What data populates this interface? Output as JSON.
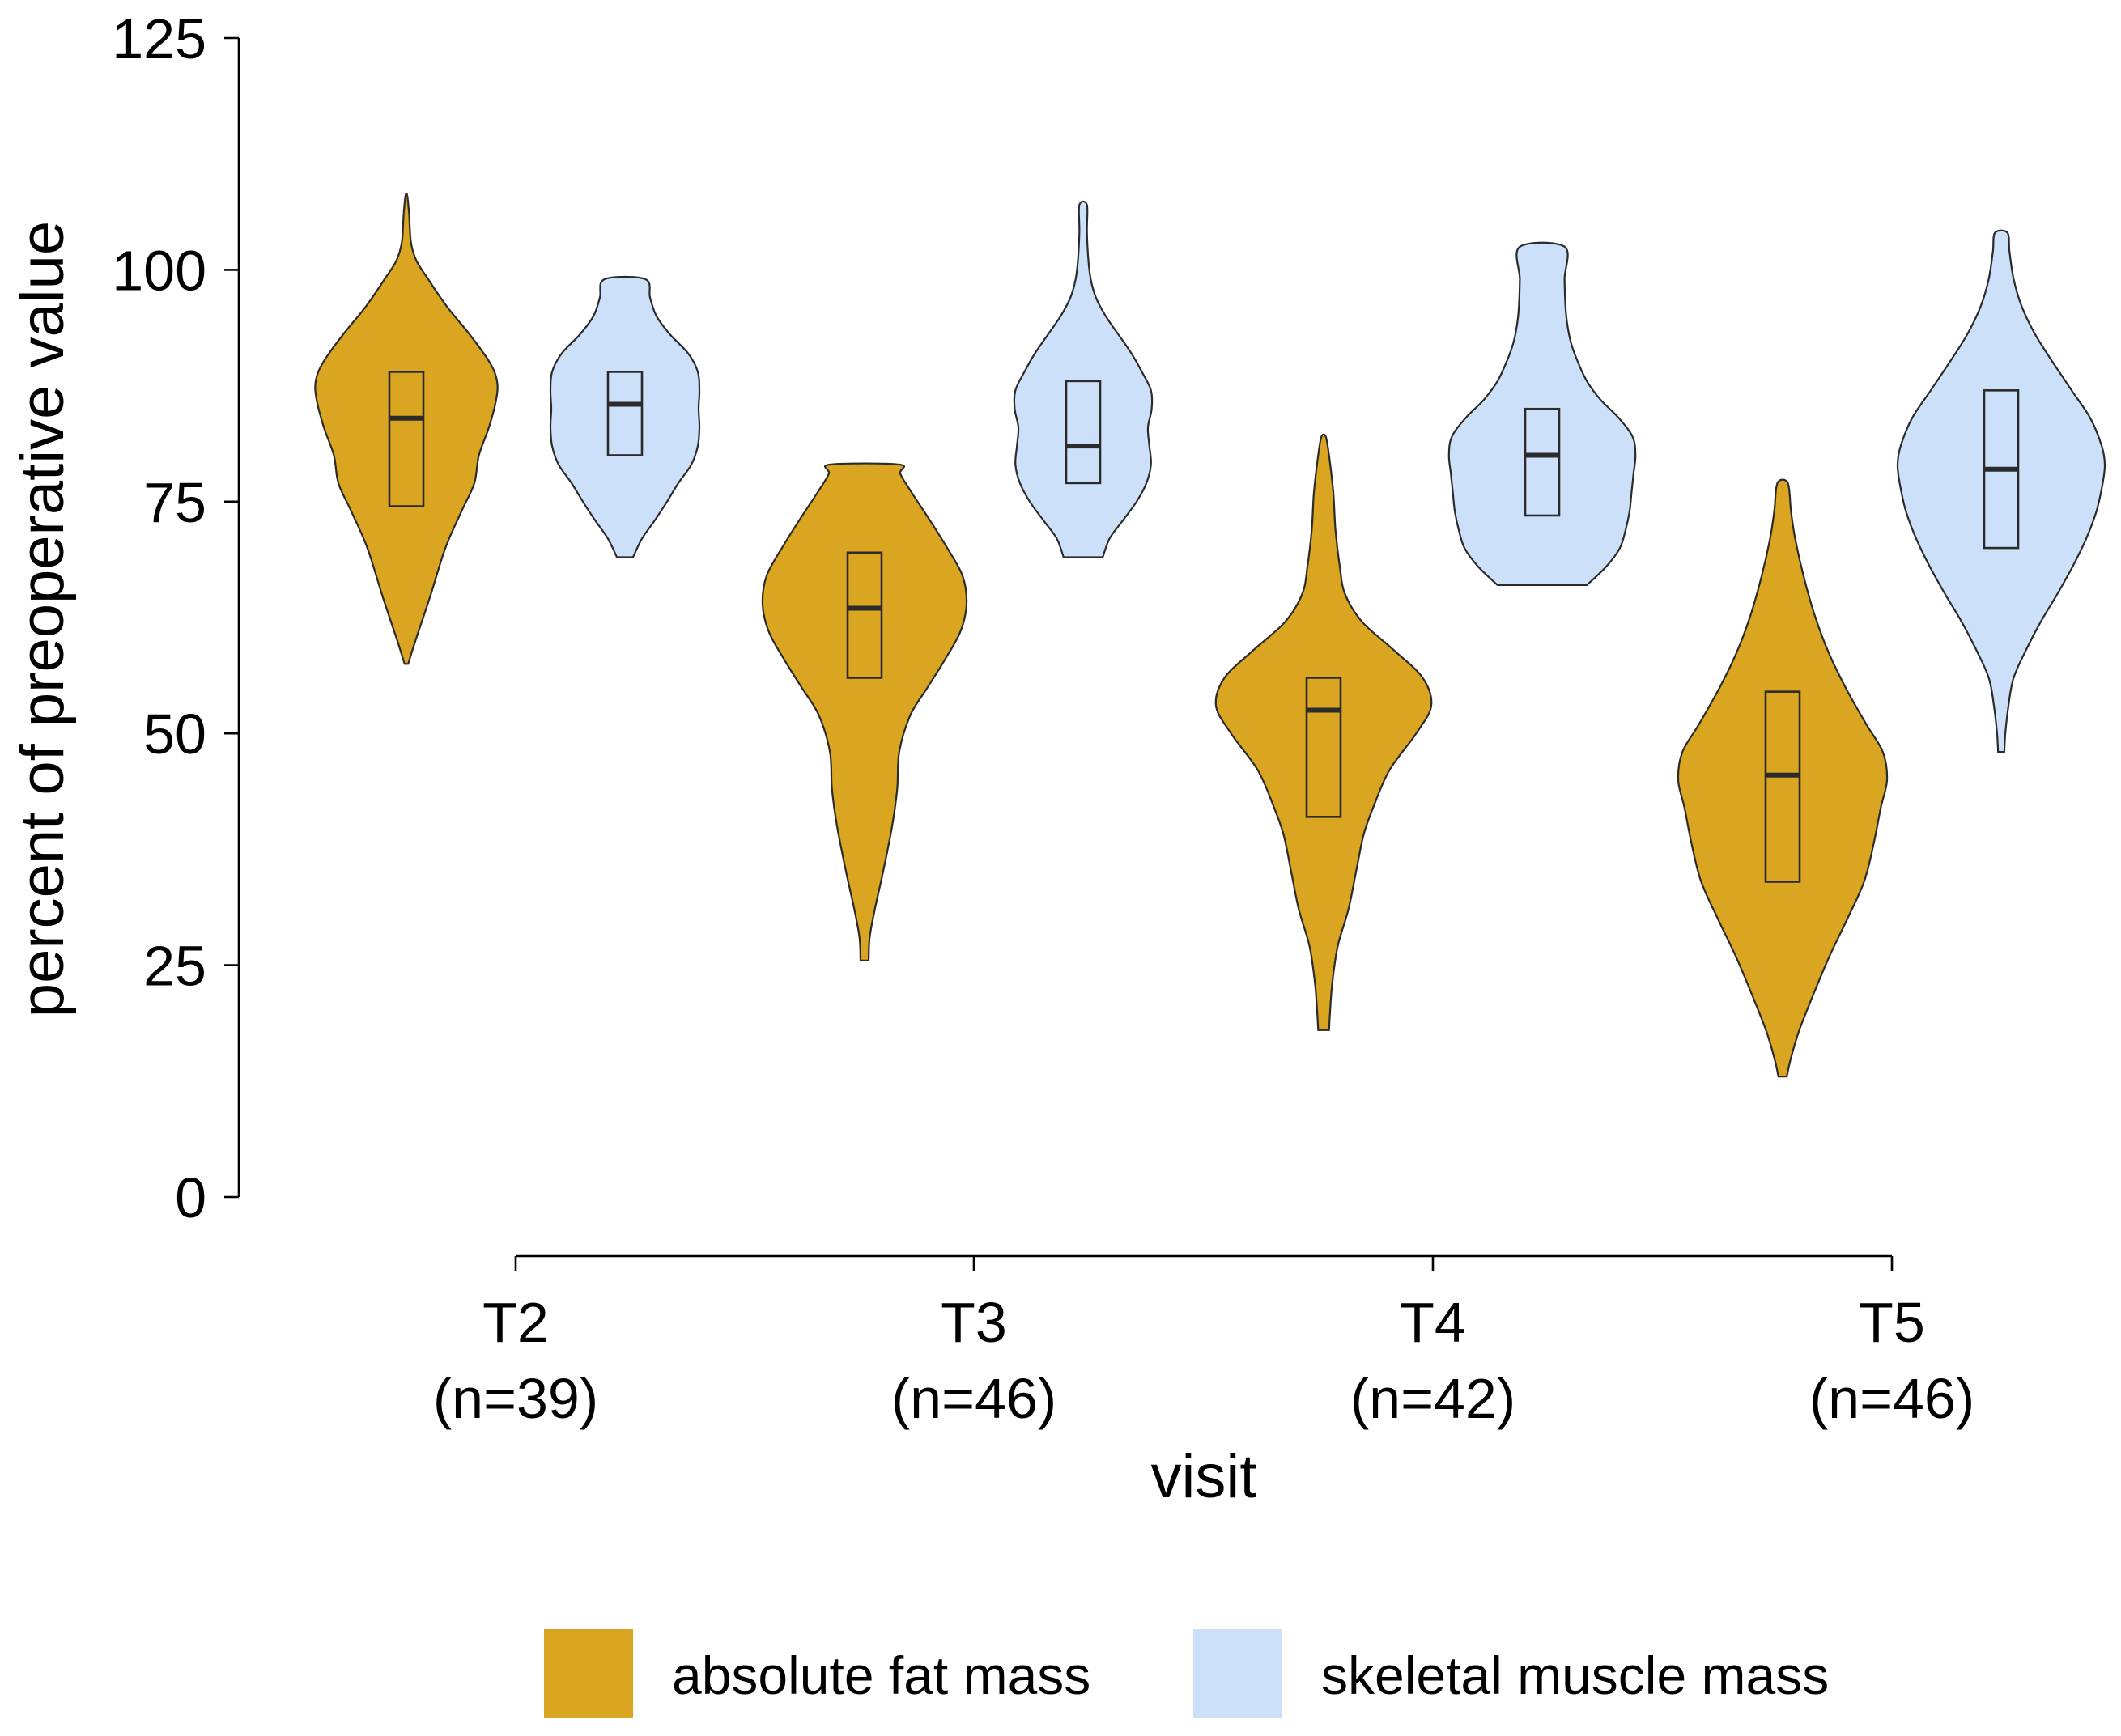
{
  "chart_data": {
    "type": "violin",
    "title": "",
    "xlabel": "visit",
    "ylabel": "percent of preoperative value",
    "ylim": [
      0,
      125
    ],
    "yticks": [
      0,
      25,
      50,
      75,
      100,
      125
    ],
    "categories": [
      {
        "label": "T2",
        "n_label": "(n=39)"
      },
      {
        "label": "T3",
        "n_label": "(n=46)"
      },
      {
        "label": "T4",
        "n_label": "(n=42)"
      },
      {
        "label": "T5",
        "n_label": "(n=46)"
      }
    ],
    "series": [
      {
        "name": "absolute fat mass",
        "color": "#DAA520",
        "violins": [
          {
            "category": "T2",
            "min": 57.5,
            "max": 108,
            "q1": 74.5,
            "median": 84,
            "q3": 89,
            "profile": [
              [
                57.5,
                0.02
              ],
              [
                60,
                0.1
              ],
              [
                65,
                0.27
              ],
              [
                70,
                0.43
              ],
              [
                74,
                0.61
              ],
              [
                77,
                0.75
              ],
              [
                80,
                0.8
              ],
              [
                83,
                0.91
              ],
              [
                86,
                0.99
              ],
              [
                88,
                1.0
              ],
              [
                90,
                0.92
              ],
              [
                93,
                0.7
              ],
              [
                96,
                0.45
              ],
              [
                99,
                0.24
              ],
              [
                101,
                0.11
              ],
              [
                103,
                0.05
              ],
              [
                106,
                0.03
              ],
              [
                108,
                0.01
              ]
            ]
          },
          {
            "category": "T3",
            "min": 25.5,
            "max": 79,
            "q1": 56,
            "median": 63.5,
            "q3": 69.5,
            "profile": [
              [
                25.5,
                0.04
              ],
              [
                28,
                0.05
              ],
              [
                31,
                0.1
              ],
              [
                35,
                0.18
              ],
              [
                40,
                0.27
              ],
              [
                44,
                0.32
              ],
              [
                48,
                0.34
              ],
              [
                52,
                0.45
              ],
              [
                55,
                0.62
              ],
              [
                58,
                0.79
              ],
              [
                61,
                0.94
              ],
              [
                64,
                1.0
              ],
              [
                67,
                0.96
              ],
              [
                70,
                0.81
              ],
              [
                73,
                0.64
              ],
              [
                76,
                0.46
              ],
              [
                78,
                0.35
              ],
              [
                79,
                0.34
              ]
            ]
          },
          {
            "category": "T4",
            "min": 18,
            "max": 82,
            "q1": 41,
            "median": 52.5,
            "q3": 56,
            "profile": [
              [
                18,
                0.05
              ],
              [
                20,
                0.06
              ],
              [
                23,
                0.08
              ],
              [
                27,
                0.13
              ],
              [
                31,
                0.23
              ],
              [
                35,
                0.3
              ],
              [
                39,
                0.37
              ],
              [
                42,
                0.46
              ],
              [
                46,
                0.61
              ],
              [
                50,
                0.86
              ],
              [
                53,
                1.0
              ],
              [
                56,
                0.92
              ],
              [
                59,
                0.65
              ],
              [
                62,
                0.36
              ],
              [
                65,
                0.2
              ],
              [
                68,
                0.15
              ],
              [
                72,
                0.11
              ],
              [
                76,
                0.09
              ],
              [
                80,
                0.05
              ],
              [
                82,
                0.02
              ]
            ]
          },
          {
            "category": "T5",
            "min": 13,
            "max": 77,
            "q1": 34,
            "median": 45.5,
            "q3": 54.5,
            "profile": [
              [
                13,
                0.04
              ],
              [
                15,
                0.08
              ],
              [
                18,
                0.16
              ],
              [
                22,
                0.3
              ],
              [
                26,
                0.45
              ],
              [
                30,
                0.62
              ],
              [
                34,
                0.78
              ],
              [
                38,
                0.87
              ],
              [
                42,
                0.94
              ],
              [
                45,
                1.0
              ],
              [
                48,
                0.96
              ],
              [
                51,
                0.8
              ],
              [
                55,
                0.6
              ],
              [
                59,
                0.43
              ],
              [
                63,
                0.3
              ],
              [
                67,
                0.2
              ],
              [
                71,
                0.12
              ],
              [
                74,
                0.08
              ],
              [
                77,
                0.05
              ]
            ]
          }
        ]
      },
      {
        "name": "skeletal muscle mass",
        "color": "#CCE0FA",
        "violins": [
          {
            "category": "T2",
            "min": 69,
            "max": 99,
            "q1": 80,
            "median": 85.5,
            "q3": 89,
            "profile": [
              [
                69,
                0.1
              ],
              [
                71,
                0.21
              ],
              [
                73,
                0.37
              ],
              [
                75,
                0.52
              ],
              [
                77,
                0.66
              ],
              [
                79,
                0.82
              ],
              [
                81,
                0.9
              ],
              [
                83,
                0.92
              ],
              [
                85,
                0.91
              ],
              [
                87,
                0.92
              ],
              [
                89,
                0.9
              ],
              [
                91,
                0.78
              ],
              [
                93,
                0.56
              ],
              [
                95,
                0.39
              ],
              [
                97,
                0.31
              ],
              [
                99,
                0.25
              ]
            ]
          },
          {
            "category": "T3",
            "min": 69,
            "max": 107,
            "q1": 77,
            "median": 81,
            "q3": 88,
            "profile": [
              [
                69,
                0.26
              ],
              [
                71,
                0.35
              ],
              [
                73,
                0.53
              ],
              [
                75,
                0.71
              ],
              [
                77,
                0.84
              ],
              [
                79,
                0.9
              ],
              [
                81,
                0.88
              ],
              [
                83,
                0.86
              ],
              [
                85,
                0.91
              ],
              [
                87,
                0.9
              ],
              [
                89,
                0.78
              ],
              [
                91,
                0.64
              ],
              [
                93,
                0.47
              ],
              [
                95,
                0.3
              ],
              [
                97,
                0.17
              ],
              [
                99,
                0.1
              ],
              [
                101,
                0.07
              ],
              [
                104,
                0.05
              ],
              [
                107,
                0.05
              ]
            ]
          },
          {
            "category": "T4",
            "min": 66,
            "max": 102.5,
            "q1": 73.5,
            "median": 80,
            "q3": 85,
            "profile": [
              [
                66,
                0.46
              ],
              [
                68,
                0.66
              ],
              [
                70,
                0.8
              ],
              [
                72,
                0.86
              ],
              [
                74,
                0.9
              ],
              [
                76,
                0.92
              ],
              [
                78,
                0.94
              ],
              [
                80,
                0.96
              ],
              [
                82,
                0.93
              ],
              [
                84,
                0.79
              ],
              [
                86,
                0.6
              ],
              [
                88,
                0.46
              ],
              [
                90,
                0.37
              ],
              [
                92,
                0.3
              ],
              [
                94,
                0.26
              ],
              [
                96,
                0.24
              ],
              [
                99,
                0.23
              ],
              [
                102.5,
                0.23
              ]
            ]
          },
          {
            "category": "T5",
            "min": 48,
            "max": 104,
            "q1": 70,
            "median": 78.5,
            "q3": 87,
            "profile": [
              [
                48,
                0.03
              ],
              [
                50,
                0.04
              ],
              [
                53,
                0.07
              ],
              [
                56,
                0.12
              ],
              [
                59,
                0.24
              ],
              [
                62,
                0.38
              ],
              [
                65,
                0.54
              ],
              [
                68,
                0.69
              ],
              [
                71,
                0.82
              ],
              [
                74,
                0.92
              ],
              [
                77,
                0.98
              ],
              [
                79,
                1.0
              ],
              [
                81,
                0.97
              ],
              [
                84,
                0.86
              ],
              [
                87,
                0.68
              ],
              [
                90,
                0.5
              ],
              [
                93,
                0.33
              ],
              [
                96,
                0.2
              ],
              [
                99,
                0.12
              ],
              [
                102,
                0.08
              ],
              [
                104,
                0.06
              ]
            ]
          }
        ]
      }
    ],
    "legend": {
      "position": "bottom",
      "entries": [
        "absolute fat mass",
        "skeletal muscle mass"
      ]
    }
  }
}
